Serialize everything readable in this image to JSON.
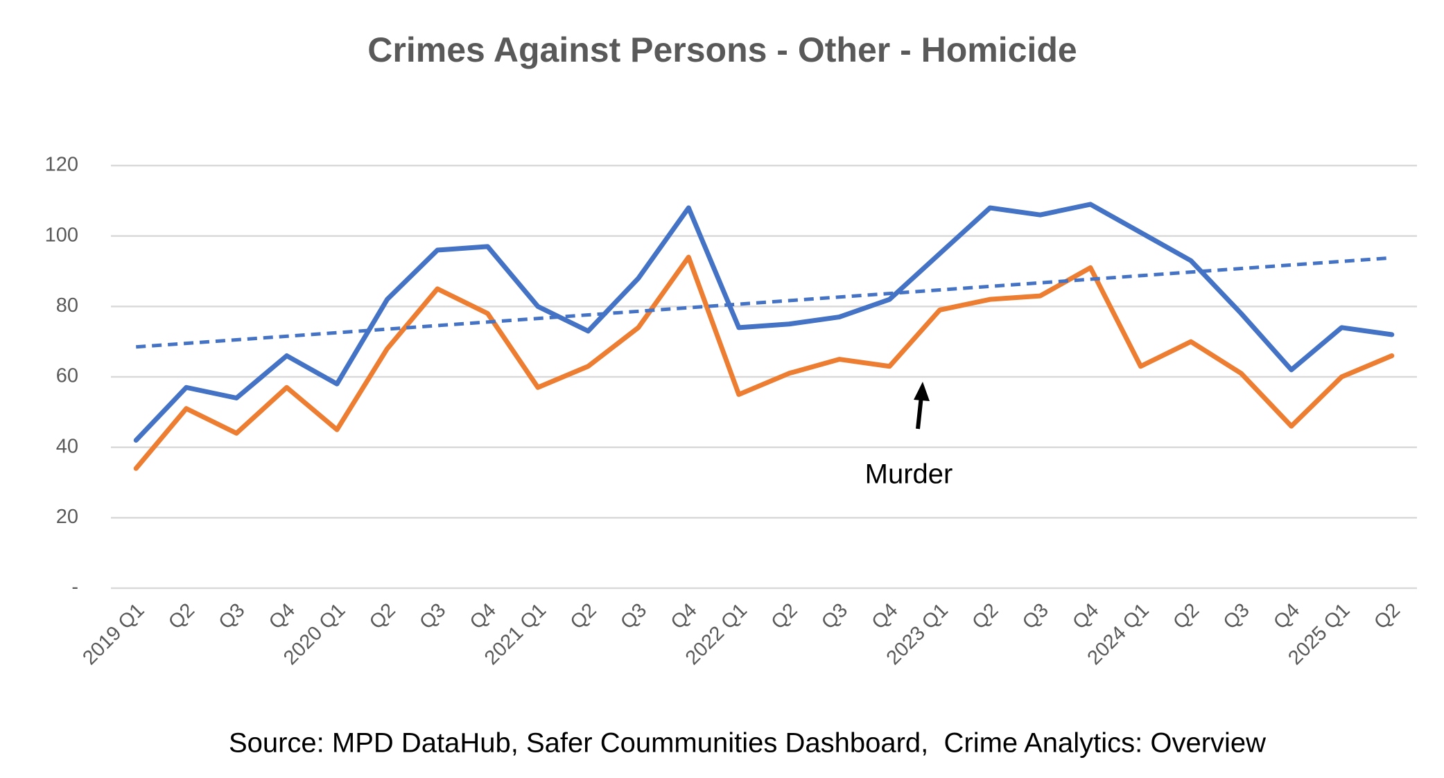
{
  "chart_data": {
    "type": "line",
    "title": "Crimes Against Persons - Other - Homicide",
    "source": "Source: MPD DataHub, Safer Coummunities Dashboard,  Crime Analytics: Overview",
    "categories": [
      "2019 Q1",
      "Q2",
      "Q3",
      "Q4",
      "2020 Q1",
      "Q2",
      "Q3",
      "Q4",
      "2021 Q1",
      "Q2",
      "Q3",
      "Q4",
      "2022 Q1",
      "Q2",
      "Q3",
      "Q4",
      "2023 Q1",
      "Q2",
      "Q3",
      "Q4",
      "2024 Q1",
      "Q2",
      "Q3",
      "Q4",
      "2025 Q1",
      "Q2"
    ],
    "series": [
      {
        "color": "#4472c4",
        "values": [
          42,
          57,
          54,
          66,
          58,
          82,
          96,
          97,
          80,
          73,
          88,
          108,
          74,
          75,
          77,
          82,
          95,
          108,
          106,
          109,
          101,
          93,
          78,
          62,
          74,
          72
        ]
      },
      {
        "name": "Murder",
        "color": "#ed7d31",
        "values": [
          34,
          51,
          44,
          57,
          45,
          68,
          85,
          78,
          57,
          63,
          74,
          94,
          55,
          61,
          65,
          63,
          79,
          82,
          83,
          91,
          63,
          70,
          61,
          46,
          60,
          66
        ]
      }
    ],
    "trendline": {
      "color": "#4472c4",
      "dashed": true,
      "values": [
        68.5,
        93.8
      ]
    },
    "ylim": [
      0,
      120
    ],
    "yticks": [
      {
        "value": 0,
        "label": "-"
      },
      20,
      40,
      60,
      80,
      100,
      120
    ],
    "grid": true
  }
}
